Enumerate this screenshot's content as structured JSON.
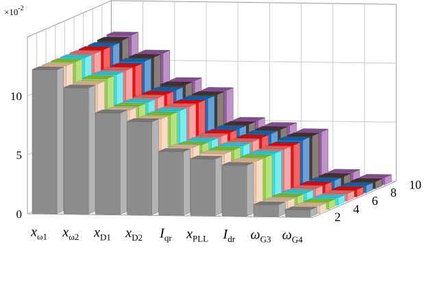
{
  "chart_data": {
    "type": "bar",
    "subtype": "3d-bar",
    "title": "",
    "multiplier_label": "×10",
    "multiplier_exponent": "-2",
    "zlim": [
      0,
      15
    ],
    "z_ticks": [
      "0",
      "5",
      "10"
    ],
    "z_tick_values": [
      0,
      5,
      10
    ],
    "depth_ticks": [
      "2",
      "4",
      "6",
      "8",
      "10"
    ],
    "depth_tick_values": [
      2,
      4,
      6,
      8,
      10
    ],
    "categories": [
      {
        "base": "x",
        "sub": "ω1",
        "italic": true
      },
      {
        "base": "x",
        "sub": "ω2",
        "italic": true
      },
      {
        "base": "x",
        "sub": "D1",
        "italic": true
      },
      {
        "base": "x",
        "sub": "D2",
        "italic": true
      },
      {
        "base": "I",
        "sub": "qr",
        "italic": true
      },
      {
        "base": "x",
        "sub": "PLL",
        "italic": true
      },
      {
        "base": "I",
        "sub": "dr",
        "italic": true
      },
      {
        "base": "ω",
        "sub": "G3",
        "italic": true
      },
      {
        "base": "ω",
        "sub": "G4",
        "italic": true
      }
    ],
    "series_colors": [
      "#8c8c8c",
      "#f2c8a8",
      "#8ed13c",
      "#33e0e8",
      "#f07878",
      "#ee1111",
      "#1a6fbf",
      "#4a3a32",
      "#9a5aa6"
    ],
    "series": [
      {
        "depth": 1,
        "values": [
          12.2,
          10.7,
          8.6,
          7.9,
          5.4,
          4.8,
          4.3,
          1.0,
          0.6
        ]
      },
      {
        "depth": 2,
        "values": [
          12.2,
          10.7,
          8.5,
          7.8,
          5.4,
          4.9,
          4.3,
          1.0,
          0.6
        ]
      },
      {
        "depth": 3,
        "values": [
          12.2,
          10.8,
          8.5,
          7.8,
          5.3,
          4.9,
          4.3,
          1.0,
          0.6
        ]
      },
      {
        "depth": 4,
        "values": [
          12.2,
          10.8,
          8.5,
          7.8,
          5.3,
          4.9,
          4.3,
          1.0,
          0.6
        ]
      },
      {
        "depth": 5,
        "values": [
          12.2,
          10.8,
          8.5,
          7.8,
          5.3,
          4.9,
          4.3,
          1.0,
          0.6
        ]
      },
      {
        "depth": 6,
        "values": [
          12.2,
          10.8,
          8.5,
          7.8,
          5.3,
          4.9,
          4.3,
          1.0,
          0.6
        ]
      },
      {
        "depth": 7,
        "values": [
          12.2,
          10.9,
          8.5,
          7.8,
          5.3,
          4.9,
          4.4,
          1.0,
          0.6
        ]
      },
      {
        "depth": 8,
        "values": [
          12.3,
          10.9,
          8.6,
          7.8,
          5.3,
          4.9,
          4.4,
          1.0,
          0.6
        ]
      },
      {
        "depth": 9,
        "values": [
          12.4,
          10.9,
          8.6,
          7.8,
          5.3,
          4.9,
          4.4,
          1.0,
          0.6
        ]
      }
    ]
  }
}
